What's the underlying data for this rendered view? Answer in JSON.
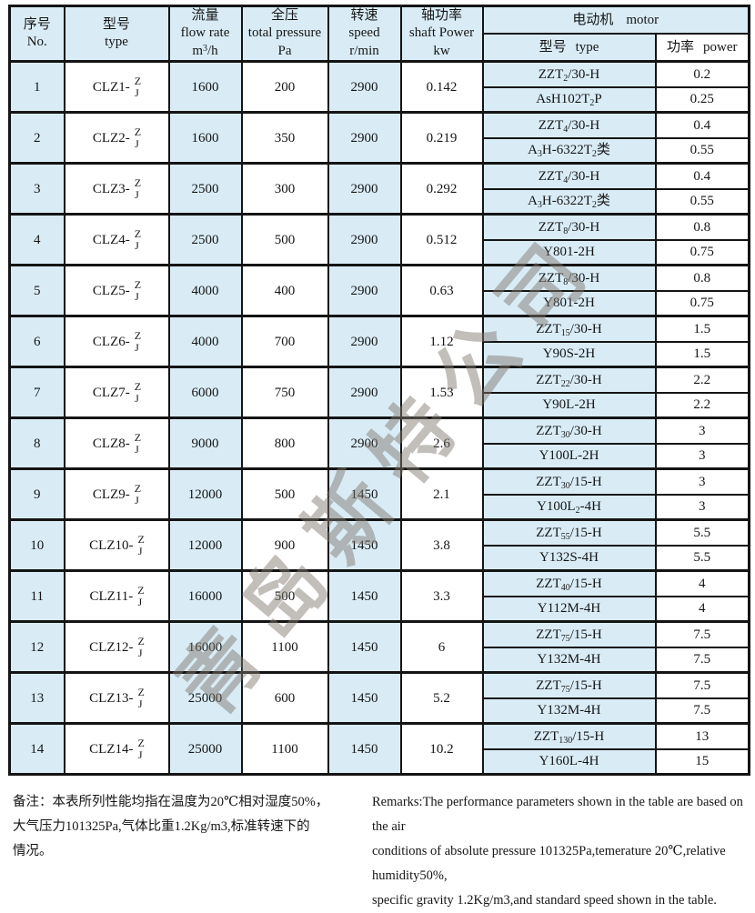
{
  "colors": {
    "cell_blue": "#d9ecf6",
    "border": "#141414",
    "text": "#151515",
    "watermark_gray": "#80786f"
  },
  "watermark": {
    "text": "青岛斯特公司"
  },
  "table": {
    "header": {
      "no_zh": "序号",
      "no_en": "No.",
      "type_zh": "型号",
      "type_en": "type",
      "flow_zh": "流量",
      "flow_en": "flow rate",
      "flow_unit": "m^{3}/h",
      "pressure_zh": "全压",
      "pressure_en": "total pressure",
      "pressure_unit": "Pa",
      "speed_zh": "转速",
      "speed_en": "speed",
      "speed_unit": "r/min",
      "shaft_zh": "轴功率",
      "shaft_en": "shaft Power",
      "shaft_unit": "kw",
      "motor_zh": "电动机",
      "motor_en": "motor",
      "motor_type_zh": "型号",
      "motor_type_en": "type",
      "motor_power_zh": "功率",
      "motor_power_en": "power"
    },
    "model_suffix_top": "Z",
    "model_suffix_bottom": "J",
    "rows": [
      {
        "no": "1",
        "model_prefix": "CLZ1-",
        "flow": "1600",
        "pressure": "200",
        "speed": "2900",
        "shaft_power": "0.142",
        "motors": [
          {
            "type": "ZZT_{2}/30-H",
            "power": "0.2"
          },
          {
            "type": "AsH102T_{2}P",
            "power": "0.25"
          }
        ]
      },
      {
        "no": "2",
        "model_prefix": "CLZ2-",
        "flow": "1600",
        "pressure": "350",
        "speed": "2900",
        "shaft_power": "0.219",
        "motors": [
          {
            "type": "ZZT_{4}/30-H",
            "power": "0.4"
          },
          {
            "type": "A_{3}H-6322T_{2}类",
            "power": "0.55"
          }
        ]
      },
      {
        "no": "3",
        "model_prefix": "CLZ3-",
        "flow": "2500",
        "pressure": "300",
        "speed": "2900",
        "shaft_power": "0.292",
        "motors": [
          {
            "type": "ZZT_{4}/30-H",
            "power": "0.4"
          },
          {
            "type": "A_{3}H-6322T_{2}类",
            "power": "0.55"
          }
        ]
      },
      {
        "no": "4",
        "model_prefix": "CLZ4-",
        "flow": "2500",
        "pressure": "500",
        "speed": "2900",
        "shaft_power": "0.512",
        "motors": [
          {
            "type": "ZZT_{8}/30-H",
            "power": "0.8"
          },
          {
            "type": "Y801-2H",
            "power": "0.75"
          }
        ]
      },
      {
        "no": "5",
        "model_prefix": "CLZ5-",
        "flow": "4000",
        "pressure": "400",
        "speed": "2900",
        "shaft_power": "0.63",
        "motors": [
          {
            "type": "ZZT_{8}/30-H",
            "power": "0.8"
          },
          {
            "type": "Y801-2H",
            "power": "0.75"
          }
        ]
      },
      {
        "no": "6",
        "model_prefix": "CLZ6-",
        "flow": "4000",
        "pressure": "700",
        "speed": "2900",
        "shaft_power": "1.12",
        "motors": [
          {
            "type": "ZZT_{15}/30-H",
            "power": "1.5"
          },
          {
            "type": "Y90S-2H",
            "power": "1.5"
          }
        ]
      },
      {
        "no": "7",
        "model_prefix": "CLZ7-",
        "flow": "6000",
        "pressure": "750",
        "speed": "2900",
        "shaft_power": "1.53",
        "motors": [
          {
            "type": "ZZT_{22}/30-H",
            "power": "2.2"
          },
          {
            "type": "Y90L-2H",
            "power": "2.2"
          }
        ]
      },
      {
        "no": "8",
        "model_prefix": "CLZ8-",
        "flow": "9000",
        "pressure": "800",
        "speed": "2900",
        "shaft_power": "2.6",
        "motors": [
          {
            "type": "ZZT_{30}/30-H",
            "power": "3"
          },
          {
            "type": "Y100L-2H",
            "power": "3"
          }
        ]
      },
      {
        "no": "9",
        "model_prefix": "CLZ9-",
        "flow": "12000",
        "pressure": "500",
        "speed": "1450",
        "shaft_power": "2.1",
        "motors": [
          {
            "type": "ZZT_{30}/15-H",
            "power": "3"
          },
          {
            "type": "Y100L_{2}-4H",
            "power": "3"
          }
        ]
      },
      {
        "no": "10",
        "model_prefix": "CLZ10-",
        "flow": "12000",
        "pressure": "900",
        "speed": "1450",
        "shaft_power": "3.8",
        "motors": [
          {
            "type": "ZZT_{55}/15-H",
            "power": "5.5"
          },
          {
            "type": "Y132S-4H",
            "power": "5.5"
          }
        ]
      },
      {
        "no": "11",
        "model_prefix": "CLZ11-",
        "flow": "16000",
        "pressure": "500",
        "speed": "1450",
        "shaft_power": "3.3",
        "motors": [
          {
            "type": "ZZT_{40}/15-H",
            "power": "4"
          },
          {
            "type": "Y112M-4H",
            "power": "4"
          }
        ]
      },
      {
        "no": "12",
        "model_prefix": "CLZ12-",
        "flow": "16000",
        "pressure": "1100",
        "speed": "1450",
        "shaft_power": "6",
        "motors": [
          {
            "type": "ZZT_{75}/15-H",
            "power": "7.5"
          },
          {
            "type": "Y132M-4H",
            "power": "7.5"
          }
        ]
      },
      {
        "no": "13",
        "model_prefix": "CLZ13-",
        "flow": "25000",
        "pressure": "600",
        "speed": "1450",
        "shaft_power": "5.2",
        "motors": [
          {
            "type": "ZZT_{75}/15-H",
            "power": "7.5"
          },
          {
            "type": "Y132M-4H",
            "power": "7.5"
          }
        ]
      },
      {
        "no": "14",
        "model_prefix": "CLZ14-",
        "flow": "25000",
        "pressure": "1100",
        "speed": "1450",
        "shaft_power": "10.2",
        "motors": [
          {
            "type": "ZZT_{130}/15-H",
            "power": "13"
          },
          {
            "type": "Y160L-4H",
            "power": "15"
          }
        ]
      }
    ]
  },
  "notes": {
    "zh_lines": [
      "备注：本表所列性能均指在温度为20℃相对湿度50%，",
      "大气压力101325Pa,气体比重1.2Kg/m3,标准转速下的",
      "情况。"
    ],
    "en_lines": [
      "Remarks:The performance parameters shown in the table are based on the air",
      "conditions of absolute pressure 101325Pa,temerature 20℃,relative humidity50%,",
      "specific gravity 1.2Kg/m3,and standard speed shown in the table."
    ]
  }
}
